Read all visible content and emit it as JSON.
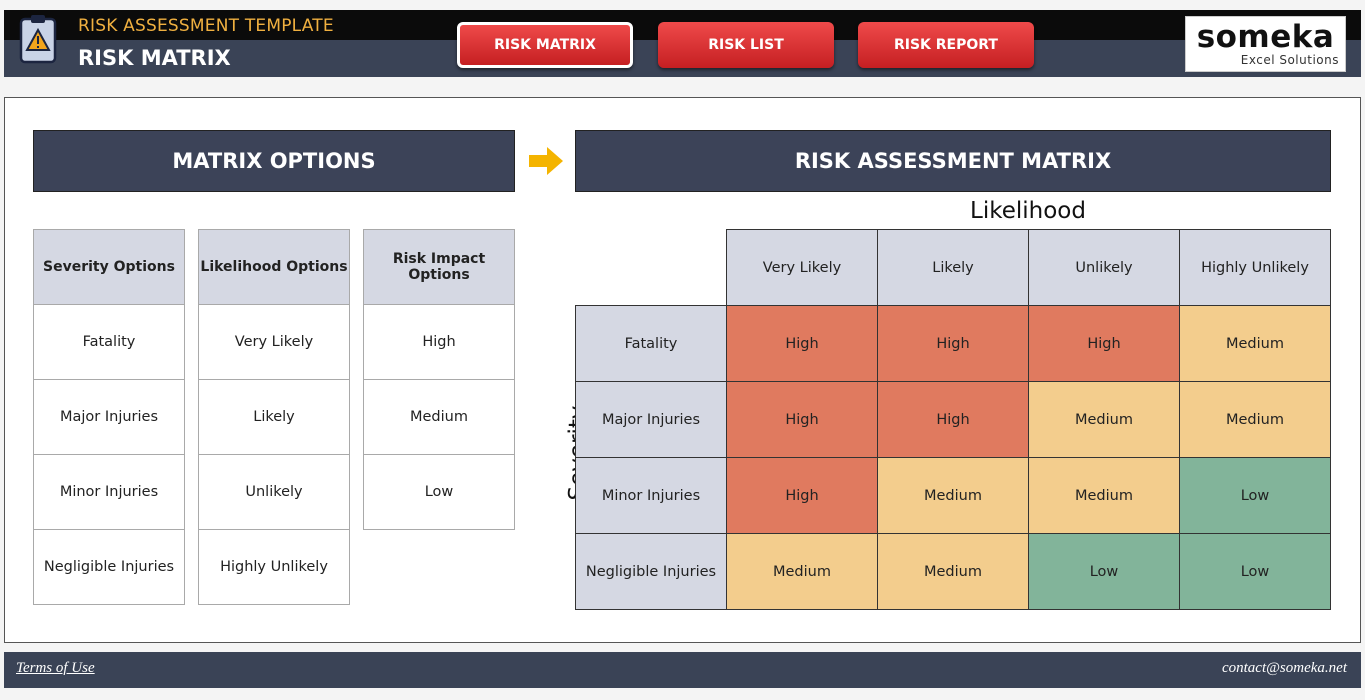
{
  "header": {
    "app_title": "RISK ASSESSMENT TEMPLATE",
    "page_title": "RISK MATRIX",
    "nav": [
      {
        "label": "RISK MATRIX",
        "active": true
      },
      {
        "label": "RISK LIST",
        "active": false
      },
      {
        "label": "RISK REPORT",
        "active": false
      }
    ],
    "logo": {
      "word": "someka",
      "sub": "Excel Solutions"
    }
  },
  "options": {
    "title": "MATRIX OPTIONS",
    "severity": {
      "header": "Severity Options",
      "items": [
        "Fatality",
        "Major Injuries",
        "Minor Injuries",
        "Negligible Injuries"
      ]
    },
    "likelihood": {
      "header": "Likelihood Options",
      "items": [
        "Very Likely",
        "Likely",
        "Unlikely",
        "Highly Unlikely"
      ]
    },
    "impact": {
      "header": "Risk Impact Options",
      "items": [
        "High",
        "Medium",
        "Low"
      ]
    }
  },
  "matrix": {
    "title": "RISK ASSESSMENT MATRIX",
    "likelihood_label": "Likelihood",
    "severity_label": "Severity",
    "columns": [
      "Very Likely",
      "Likely",
      "Unlikely",
      "Highly Unlikely"
    ],
    "rows": [
      {
        "label": "Fatality",
        "values": [
          "High",
          "High",
          "High",
          "Medium"
        ]
      },
      {
        "label": "Major Injuries",
        "values": [
          "High",
          "High",
          "Medium",
          "Medium"
        ]
      },
      {
        "label": "Minor Injuries",
        "values": [
          "High",
          "Medium",
          "Medium",
          "Low"
        ]
      },
      {
        "label": "Negligible Injuries",
        "values": [
          "Medium",
          "Medium",
          "Low",
          "Low"
        ]
      }
    ],
    "colors": {
      "High": "#e07a5f",
      "Medium": "#f3cd8d",
      "Low": "#82b49a",
      "header": "#d5d8e3"
    }
  },
  "footer": {
    "terms": "Terms of Use",
    "contact": "contact@someka.net"
  }
}
